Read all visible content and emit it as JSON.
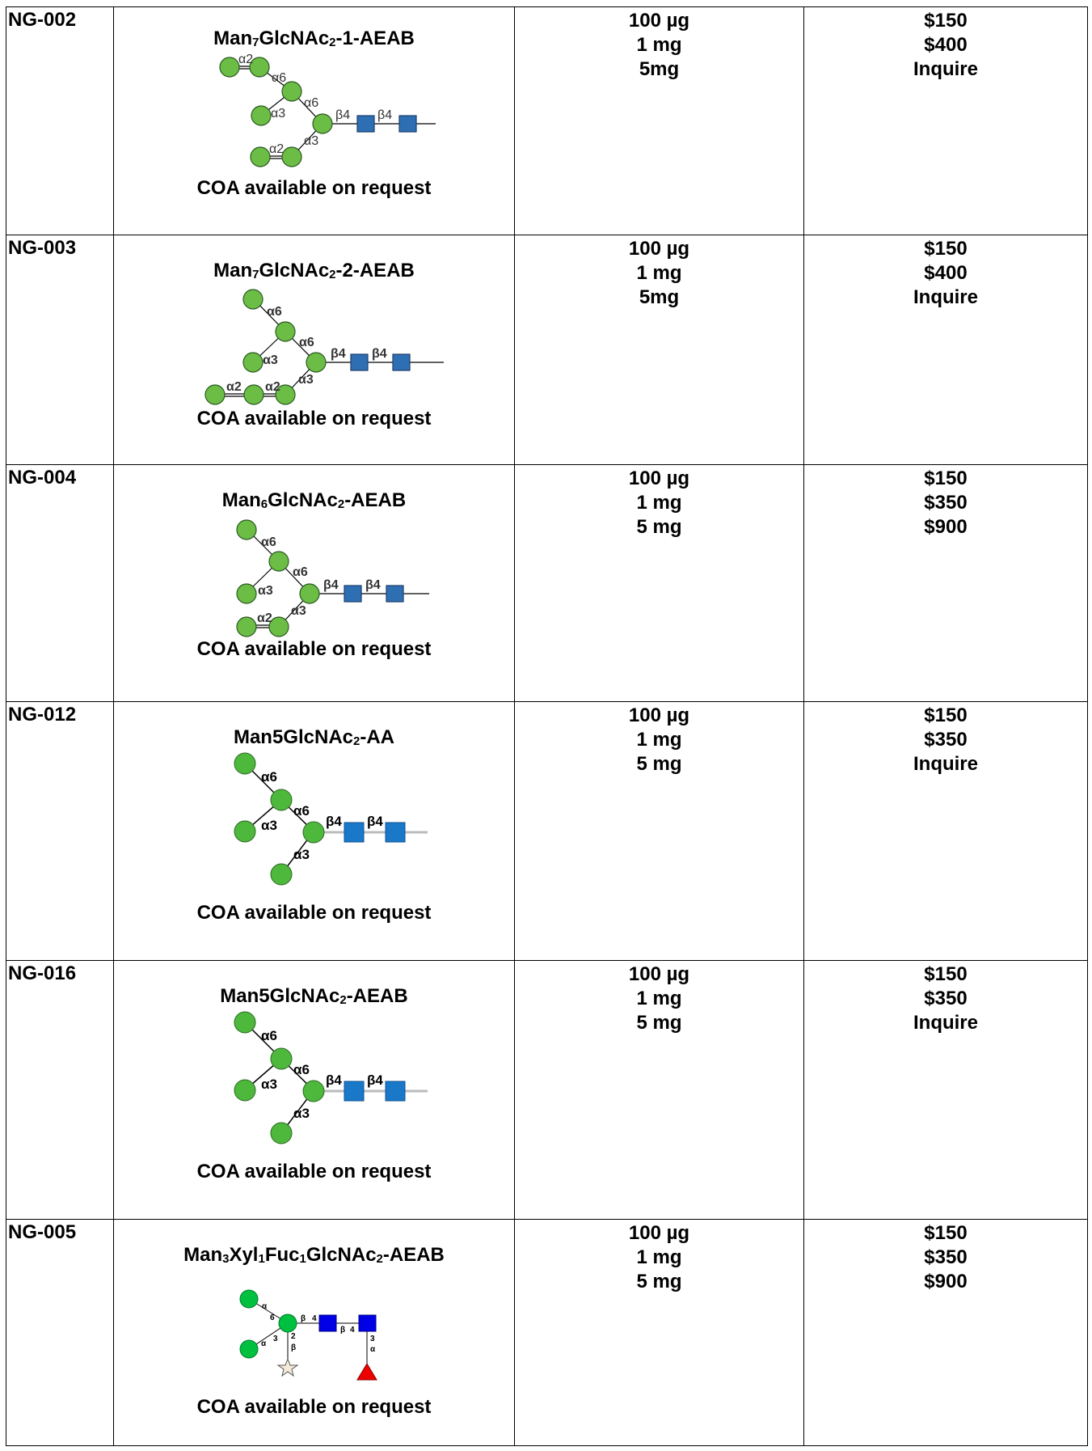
{
  "products": [
    {
      "catalog": "NG-002",
      "name": {
        "base": "Man",
        "n1": "7",
        "mid": "GlcNAc",
        "n2": "2",
        "tail": "-1-AEAB"
      },
      "coa": "COA available on request",
      "quantities": [
        "100 µg",
        "1 mg",
        "5mg"
      ],
      "prices": [
        "$150",
        "$400",
        "Inquire"
      ],
      "glycan": {
        "labels": [
          "α2",
          "α6",
          "α6",
          "α3",
          "β4",
          "β4",
          "α3",
          "α2"
        ],
        "icons": [
          "mannose-circle",
          "glcnac-square"
        ]
      }
    },
    {
      "catalog": "NG-003",
      "name": {
        "base": "Man",
        "n1": "7",
        "mid": "GlcNAc",
        "n2": "2",
        "tail": "-2-AEAB"
      },
      "coa": "COA available on request",
      "quantities": [
        "100 µg",
        "1 mg",
        "5mg"
      ],
      "prices": [
        "$150",
        "$400",
        "Inquire"
      ],
      "glycan": {
        "labels": [
          "α6",
          "α6",
          "α3",
          "β4",
          "β4",
          "α3",
          "α2",
          "α2"
        ],
        "icons": [
          "mannose-circle",
          "glcnac-square"
        ]
      }
    },
    {
      "catalog": "NG-004",
      "name": {
        "base": "Man",
        "n1": "6",
        "mid": "GlcNAc",
        "n2": "2",
        "tail": "-AEAB"
      },
      "coa": "COA available on request",
      "quantities": [
        "100 µg",
        "1 mg",
        "5 mg"
      ],
      "prices": [
        "$150",
        "$350",
        "$900"
      ],
      "glycan": {
        "labels": [
          "α6",
          "α6",
          "α3",
          "β4",
          "β4",
          "α3",
          "α2"
        ],
        "icons": [
          "mannose-circle",
          "glcnac-square"
        ]
      }
    },
    {
      "catalog": "NG-012",
      "name": {
        "base": "Man5GlcNAc",
        "n1": "",
        "mid": "",
        "n2": "2",
        "tail": "-AA"
      },
      "coa": "COA available on request",
      "quantities": [
        "100 µg",
        "1 mg",
        "5 mg"
      ],
      "prices": [
        "$150",
        "$350",
        "Inquire"
      ],
      "glycan": {
        "labels": [
          "α6",
          "α6",
          "α3",
          "β4",
          "β4",
          "α3"
        ],
        "icons": [
          "mannose-circle",
          "glcnac-square"
        ]
      }
    },
    {
      "catalog": "NG-016",
      "name": {
        "base": "Man5GlcNAc",
        "n1": "",
        "mid": "",
        "n2": "2",
        "tail": "-AEAB"
      },
      "coa": "COA available on request",
      "quantities": [
        "100 µg",
        "1 mg",
        "5 mg"
      ],
      "prices": [
        "$150",
        "$350",
        "Inquire"
      ],
      "glycan": {
        "labels": [
          "α6",
          "α6",
          "α3",
          "β4",
          "β4",
          "α3"
        ],
        "icons": [
          "mannose-circle",
          "glcnac-square"
        ]
      }
    },
    {
      "catalog": "NG-005",
      "name": {
        "base": "Man",
        "n1": "3",
        "mid": "Xyl",
        "n2": "1",
        "tail": "Fuc",
        "n3": "1",
        "tail2": "GlcNAc",
        "n4": "2",
        "tail3": "-AEAB"
      },
      "coa": "COA available on request",
      "quantities": [
        "100 µg",
        "1 mg",
        "5 mg"
      ],
      "prices": [
        "$150",
        "$350",
        "$900"
      ],
      "glycan": {
        "labels": [
          "α",
          "6",
          "α",
          "3",
          "β",
          "4",
          "β",
          "4",
          "2",
          "β",
          "3",
          "α"
        ],
        "icons": [
          "mannose-circle",
          "glcnac-square",
          "xylose-star",
          "fucose-triangle"
        ]
      }
    }
  ],
  "colors": {
    "mannose": "#6cbd45",
    "glcnac_a": "#2e6fb4",
    "glcnac_b": "#1a78c8",
    "glcnac_c": "#0000e6",
    "mannose_bright": "#00c040",
    "fucose": "#ee0000",
    "xylose": "#f5e9d8"
  }
}
